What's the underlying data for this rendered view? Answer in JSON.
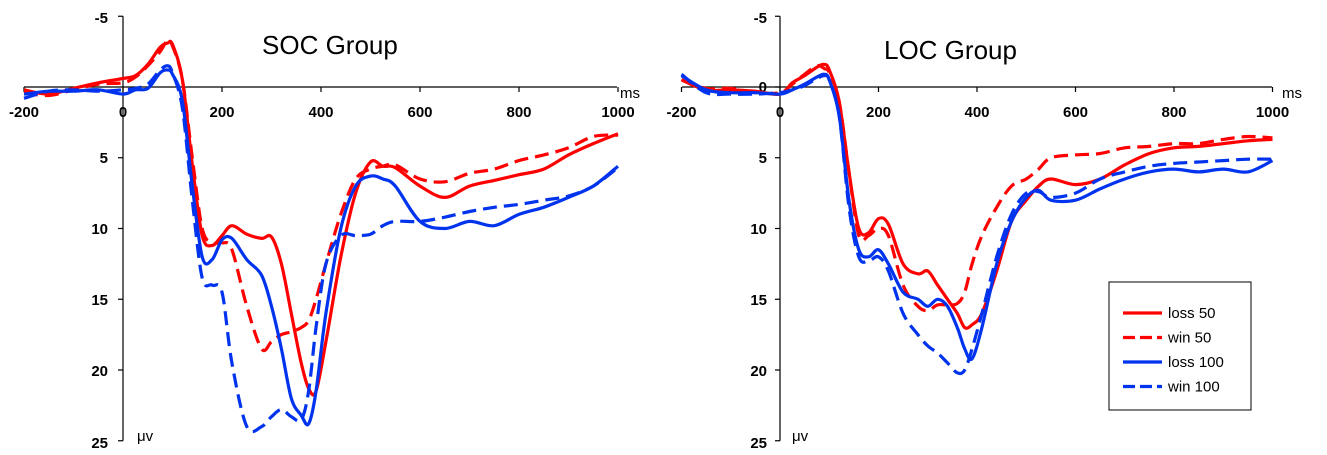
{
  "chart_data": [
    {
      "type": "line",
      "title": "SOC Group",
      "xunit": "ms",
      "yunit": "μv",
      "xlim": [
        -200,
        1000
      ],
      "ylim": [
        -5,
        25
      ],
      "y_inverted": true,
      "xticks": [
        -200,
        0,
        200,
        400,
        600,
        800,
        1000
      ],
      "yticks": [
        -5,
        5,
        10,
        15,
        20,
        25
      ],
      "x": [
        -200,
        -150,
        -100,
        -50,
        0,
        25,
        50,
        75,
        90,
        100,
        120,
        140,
        160,
        180,
        200,
        220,
        250,
        280,
        300,
        320,
        340,
        360,
        375,
        390,
        410,
        440,
        470,
        500,
        525,
        550,
        600,
        650,
        700,
        750,
        800,
        850,
        900,
        950,
        1000
      ],
      "series": [
        {
          "name": "loss 50",
          "color": "#ff0000",
          "dash": false,
          "values": [
            0.2,
            0.5,
            0.1,
            -0.3,
            -0.6,
            -0.8,
            -1.6,
            -2.8,
            -3.1,
            -3.0,
            -0.5,
            5.5,
            10.5,
            11.2,
            10.5,
            9.8,
            10.4,
            10.7,
            10.6,
            12.5,
            16.0,
            19.5,
            21.3,
            21.5,
            18.0,
            12.0,
            7.5,
            5.3,
            5.6,
            5.7,
            7.0,
            7.8,
            7.0,
            6.6,
            6.2,
            5.8,
            4.8,
            4.0,
            3.3
          ]
        },
        {
          "name": "win 50",
          "color": "#ff0000",
          "dash": true,
          "values": [
            0.4,
            0.6,
            0.2,
            -0.2,
            -0.3,
            -0.7,
            -1.5,
            -2.5,
            -3.3,
            -2.9,
            -0.5,
            5.0,
            10.0,
            11.0,
            11.0,
            11.5,
            15.5,
            18.5,
            18.0,
            17.5,
            17.3,
            17.0,
            16.5,
            15.0,
            12.5,
            9.0,
            6.5,
            5.8,
            5.6,
            5.5,
            6.5,
            6.7,
            6.1,
            5.8,
            5.2,
            4.8,
            4.3,
            3.5,
            3.4
          ]
        },
        {
          "name": "loss 100",
          "color": "#0033ee",
          "dash": false,
          "values": [
            0.5,
            0.3,
            0.3,
            0.2,
            0.5,
            0.2,
            0.1,
            -1.0,
            -1.2,
            -0.9,
            1.0,
            7.0,
            12.0,
            12.2,
            10.8,
            10.7,
            12.2,
            13.3,
            15.5,
            18.5,
            22.0,
            23.2,
            23.8,
            21.5,
            16.0,
            10.0,
            7.0,
            6.3,
            6.5,
            7.0,
            9.5,
            10.0,
            9.5,
            9.8,
            9.0,
            8.5,
            7.8,
            7.0,
            5.6
          ]
        },
        {
          "name": "win 100",
          "color": "#0033ee",
          "dash": true,
          "values": [
            0.8,
            0.3,
            0.2,
            0.3,
            0.2,
            0.1,
            -0.2,
            -1.2,
            -1.5,
            -1.0,
            1.5,
            8.0,
            13.5,
            14.0,
            14.5,
            19.5,
            24.0,
            24.0,
            23.3,
            22.8,
            23.3,
            23.5,
            21.5,
            17.0,
            12.5,
            10.5,
            10.5,
            10.4,
            9.8,
            9.5,
            9.5,
            9.2,
            8.8,
            8.5,
            8.3,
            8.0,
            7.7,
            7.0,
            5.7
          ]
        }
      ]
    },
    {
      "type": "line",
      "title": "LOC Group",
      "xunit": "ms",
      "yunit": "μv",
      "xlim": [
        -200,
        1000
      ],
      "ylim": [
        -5,
        25
      ],
      "y_inverted": true,
      "xticks": [
        -200,
        0,
        200,
        400,
        600,
        800,
        1000
      ],
      "yticks": [
        -5,
        0,
        5,
        10,
        15,
        20,
        25
      ],
      "x": [
        -200,
        -150,
        -100,
        -50,
        0,
        25,
        50,
        75,
        90,
        100,
        120,
        140,
        160,
        180,
        200,
        220,
        250,
        280,
        300,
        320,
        340,
        360,
        375,
        390,
        410,
        440,
        470,
        500,
        525,
        550,
        600,
        650,
        700,
        750,
        800,
        850,
        900,
        950,
        1000
      ],
      "legend": {
        "position": "bottom-right"
      },
      "series": [
        {
          "name": "loss 50",
          "color": "#ff0000",
          "dash": false,
          "values": [
            -0.5,
            0.2,
            0.2,
            0.3,
            0.5,
            -0.3,
            -0.8,
            -1.4,
            -1.6,
            -1.2,
            1.0,
            6.0,
            10.0,
            10.3,
            9.3,
            9.7,
            12.5,
            13.2,
            13.0,
            14.0,
            15.0,
            16.0,
            17.0,
            16.8,
            16.0,
            13.0,
            9.5,
            8.0,
            7.0,
            6.5,
            6.9,
            6.5,
            5.5,
            4.7,
            4.3,
            4.2,
            4.0,
            3.8,
            3.7
          ]
        },
        {
          "name": "win 50",
          "color": "#ff0000",
          "dash": true,
          "values": [
            -0.5,
            0.1,
            0.1,
            0.4,
            0.4,
            -0.2,
            -0.9,
            -1.5,
            -1.3,
            -1.0,
            1.0,
            6.0,
            10.5,
            10.5,
            10.0,
            10.5,
            14.0,
            15.5,
            15.8,
            15.4,
            15.4,
            15.3,
            14.5,
            12.5,
            10.5,
            8.5,
            7.0,
            6.5,
            5.8,
            5.0,
            4.8,
            4.7,
            4.3,
            4.2,
            4.0,
            4.0,
            3.7,
            3.5,
            3.6
          ]
        },
        {
          "name": "loss 100",
          "color": "#0033ee",
          "dash": false,
          "values": [
            -0.8,
            0.2,
            0.4,
            0.4,
            0.5,
            0.2,
            -0.2,
            -0.7,
            -0.9,
            -0.5,
            2.0,
            8.0,
            11.5,
            12.0,
            11.5,
            12.5,
            14.5,
            15.0,
            15.5,
            15.0,
            15.5,
            17.0,
            18.5,
            19.2,
            17.0,
            12.5,
            9.5,
            7.8,
            7.3,
            8.0,
            8.0,
            7.2,
            6.5,
            6.0,
            5.8,
            6.0,
            5.8,
            6.0,
            5.2
          ]
        },
        {
          "name": "win 100",
          "color": "#0033ee",
          "dash": true,
          "values": [
            -0.9,
            0.4,
            0.5,
            0.5,
            0.4,
            0.2,
            -0.1,
            -0.6,
            -0.8,
            -0.5,
            2.0,
            8.5,
            12.0,
            12.3,
            12.0,
            13.0,
            16.0,
            17.5,
            18.3,
            18.8,
            19.5,
            20.2,
            20.0,
            18.5,
            16.0,
            12.0,
            9.0,
            7.5,
            7.4,
            7.8,
            7.5,
            6.5,
            6.0,
            5.6,
            5.4,
            5.3,
            5.2,
            5.1,
            5.1
          ]
        }
      ]
    }
  ]
}
